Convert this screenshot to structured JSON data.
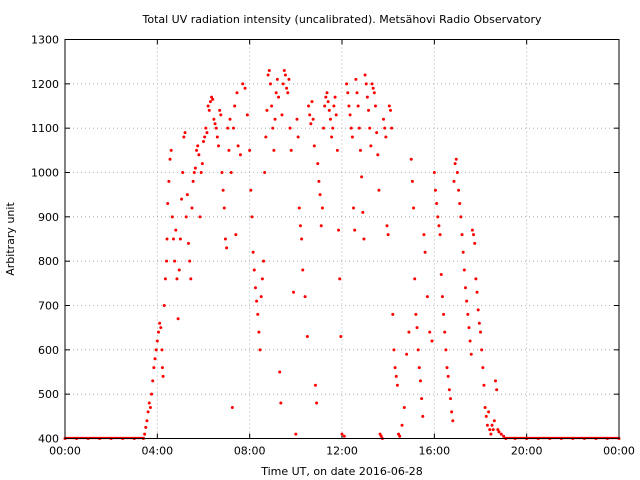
{
  "chart_data": {
    "type": "scatter",
    "title": "Total UV radiation intensity (uncalibrated). Metsähovi Radio Observatory",
    "xlabel": "Time UT, on date 2016-06-28",
    "ylabel": "Arbitrary unit",
    "xlim": [
      0,
      24
    ],
    "ylim": [
      400,
      1300
    ],
    "x_ticks": [
      {
        "value": 0,
        "label": "00:00"
      },
      {
        "value": 4,
        "label": "04:00"
      },
      {
        "value": 8,
        "label": "08:00"
      },
      {
        "value": 12,
        "label": "12:00"
      },
      {
        "value": 16,
        "label": "16:00"
      },
      {
        "value": 20,
        "label": "20:00"
      },
      {
        "value": 24,
        "label": "00:00"
      }
    ],
    "y_ticks": [
      {
        "value": 400,
        "label": "400"
      },
      {
        "value": 500,
        "label": "500"
      },
      {
        "value": 600,
        "label": "600"
      },
      {
        "value": 700,
        "label": "700"
      },
      {
        "value": 800,
        "label": "800"
      },
      {
        "value": 900,
        "label": "900"
      },
      {
        "value": 1000,
        "label": "1000"
      },
      {
        "value": 1100,
        "label": "1100"
      },
      {
        "value": 1200,
        "label": "1200"
      },
      {
        "value": 1300,
        "label": "1300"
      }
    ],
    "grid": true,
    "color": "#ff0000",
    "series": [
      {
        "points": [
          [
            0.0,
            400
          ],
          [
            0.5,
            400
          ],
          [
            1.0,
            400
          ],
          [
            1.5,
            400
          ],
          [
            2.0,
            400
          ],
          [
            2.5,
            400
          ],
          [
            3.0,
            400
          ],
          [
            3.4,
            400
          ],
          [
            3.45,
            410
          ],
          [
            3.5,
            425
          ],
          [
            3.55,
            440
          ],
          [
            3.6,
            460
          ],
          [
            3.65,
            480
          ],
          [
            3.7,
            470
          ],
          [
            3.75,
            500
          ],
          [
            3.8,
            530
          ],
          [
            3.85,
            560
          ],
          [
            3.9,
            580
          ],
          [
            3.95,
            600
          ],
          [
            4.0,
            620
          ],
          [
            4.05,
            640
          ],
          [
            4.1,
            660
          ],
          [
            4.15,
            650
          ],
          [
            4.2,
            600
          ],
          [
            4.22,
            560
          ],
          [
            4.25,
            540
          ],
          [
            4.3,
            700
          ],
          [
            4.35,
            760
          ],
          [
            4.4,
            800
          ],
          [
            4.42,
            850
          ],
          [
            4.45,
            930
          ],
          [
            4.5,
            980
          ],
          [
            4.55,
            1030
          ],
          [
            4.6,
            1050
          ],
          [
            4.65,
            900
          ],
          [
            4.7,
            850
          ],
          [
            4.75,
            800
          ],
          [
            4.8,
            870
          ],
          [
            4.85,
            760
          ],
          [
            4.9,
            670
          ],
          [
            4.95,
            780
          ],
          [
            5.0,
            850
          ],
          [
            5.05,
            940
          ],
          [
            5.1,
            1000
          ],
          [
            5.15,
            1080
          ],
          [
            5.2,
            1090
          ],
          [
            5.25,
            900
          ],
          [
            5.3,
            950
          ],
          [
            5.35,
            840
          ],
          [
            5.4,
            800
          ],
          [
            5.45,
            760
          ],
          [
            5.5,
            920
          ],
          [
            5.55,
            980
          ],
          [
            5.6,
            1000
          ],
          [
            5.65,
            1010
          ],
          [
            5.7,
            1050
          ],
          [
            5.75,
            1060
          ],
          [
            5.8,
            1040
          ],
          [
            5.85,
            900
          ],
          [
            5.9,
            1000
          ],
          [
            5.95,
            1020
          ],
          [
            6.0,
            1070
          ],
          [
            6.05,
            1080
          ],
          [
            6.1,
            1100
          ],
          [
            6.15,
            1090
          ],
          [
            6.2,
            1150
          ],
          [
            6.25,
            1140
          ],
          [
            6.3,
            1160
          ],
          [
            6.35,
            1170
          ],
          [
            6.4,
            1165
          ],
          [
            6.45,
            1120
          ],
          [
            6.5,
            1110
          ],
          [
            6.55,
            1100
          ],
          [
            6.6,
            1080
          ],
          [
            6.65,
            1060
          ],
          [
            6.7,
            1140
          ],
          [
            6.75,
            1130
          ],
          [
            6.8,
            1000
          ],
          [
            6.85,
            960
          ],
          [
            6.9,
            920
          ],
          [
            6.95,
            850
          ],
          [
            7.0,
            830
          ],
          [
            7.05,
            1100
          ],
          [
            7.1,
            1050
          ],
          [
            7.15,
            1120
          ],
          [
            7.2,
            1000
          ],
          [
            7.25,
            470
          ],
          [
            7.3,
            1100
          ],
          [
            7.35,
            1150
          ],
          [
            7.4,
            860
          ],
          [
            7.45,
            1180
          ],
          [
            7.5,
            1060
          ],
          [
            7.6,
            1040
          ],
          [
            7.7,
            1200
          ],
          [
            7.8,
            1190
          ],
          [
            7.9,
            1130
          ],
          [
            8.0,
            1050
          ],
          [
            8.05,
            960
          ],
          [
            8.1,
            900
          ],
          [
            8.15,
            820
          ],
          [
            8.2,
            780
          ],
          [
            8.25,
            740
          ],
          [
            8.3,
            710
          ],
          [
            8.35,
            680
          ],
          [
            8.4,
            640
          ],
          [
            8.45,
            600
          ],
          [
            8.5,
            720
          ],
          [
            8.55,
            760
          ],
          [
            8.6,
            800
          ],
          [
            8.65,
            1000
          ],
          [
            8.7,
            1080
          ],
          [
            8.75,
            1140
          ],
          [
            8.8,
            1220
          ],
          [
            8.85,
            1230
          ],
          [
            8.9,
            1200
          ],
          [
            8.95,
            1150
          ],
          [
            9.0,
            1100
          ],
          [
            9.05,
            1050
          ],
          [
            9.1,
            1120
          ],
          [
            9.15,
            1180
          ],
          [
            9.2,
            1210
          ],
          [
            9.25,
            1170
          ],
          [
            9.3,
            550
          ],
          [
            9.35,
            480
          ],
          [
            9.4,
            1130
          ],
          [
            9.45,
            1200
          ],
          [
            9.5,
            1230
          ],
          [
            9.55,
            1220
          ],
          [
            9.6,
            1190
          ],
          [
            9.65,
            1180
          ],
          [
            9.7,
            1210
          ],
          [
            9.75,
            1100
          ],
          [
            9.8,
            1050
          ],
          [
            9.9,
            730
          ],
          [
            10.0,
            410
          ],
          [
            10.05,
            1120
          ],
          [
            10.1,
            1080
          ],
          [
            10.15,
            920
          ],
          [
            10.2,
            880
          ],
          [
            10.25,
            850
          ],
          [
            10.3,
            780
          ],
          [
            10.4,
            720
          ],
          [
            10.5,
            630
          ],
          [
            10.55,
            1150
          ],
          [
            10.6,
            1130
          ],
          [
            10.65,
            1110
          ],
          [
            10.7,
            1160
          ],
          [
            10.75,
            1120
          ],
          [
            10.8,
            1060
          ],
          [
            10.85,
            520
          ],
          [
            10.9,
            480
          ],
          [
            10.95,
            1020
          ],
          [
            11.0,
            980
          ],
          [
            11.05,
            950
          ],
          [
            11.1,
            880
          ],
          [
            11.15,
            920
          ],
          [
            11.2,
            1100
          ],
          [
            11.25,
            1150
          ],
          [
            11.3,
            1170
          ],
          [
            11.35,
            1180
          ],
          [
            11.4,
            1160
          ],
          [
            11.45,
            1140
          ],
          [
            11.5,
            1120
          ],
          [
            11.55,
            1080
          ],
          [
            11.6,
            1100
          ],
          [
            11.65,
            1150
          ],
          [
            11.7,
            1170
          ],
          [
            11.75,
            1130
          ],
          [
            11.8,
            1050
          ],
          [
            11.85,
            870
          ],
          [
            11.9,
            760
          ],
          [
            11.95,
            630
          ],
          [
            12.0,
            410
          ],
          [
            12.1,
            405
          ],
          [
            12.2,
            1200
          ],
          [
            12.25,
            1180
          ],
          [
            12.3,
            1150
          ],
          [
            12.35,
            1130
          ],
          [
            12.4,
            1100
          ],
          [
            12.45,
            1080
          ],
          [
            12.5,
            920
          ],
          [
            12.55,
            870
          ],
          [
            12.6,
            1210
          ],
          [
            12.65,
            1180
          ],
          [
            12.7,
            1150
          ],
          [
            12.75,
            1100
          ],
          [
            12.8,
            1050
          ],
          [
            12.85,
            990
          ],
          [
            12.9,
            910
          ],
          [
            12.95,
            850
          ],
          [
            13.0,
            1220
          ],
          [
            13.05,
            1200
          ],
          [
            13.1,
            1170
          ],
          [
            13.15,
            1140
          ],
          [
            13.2,
            1100
          ],
          [
            13.25,
            1060
          ],
          [
            13.3,
            1200
          ],
          [
            13.35,
            1190
          ],
          [
            13.4,
            1180
          ],
          [
            13.45,
            1150
          ],
          [
            13.5,
            1090
          ],
          [
            13.55,
            1040
          ],
          [
            13.6,
            960
          ],
          [
            13.65,
            410
          ],
          [
            13.7,
            405
          ],
          [
            13.75,
            400
          ],
          [
            13.8,
            1120
          ],
          [
            13.85,
            1100
          ],
          [
            13.9,
            1080
          ],
          [
            13.95,
            880
          ],
          [
            14.0,
            860
          ],
          [
            14.05,
            1150
          ],
          [
            14.1,
            1140
          ],
          [
            14.15,
            1100
          ],
          [
            14.2,
            680
          ],
          [
            14.25,
            600
          ],
          [
            14.3,
            560
          ],
          [
            14.35,
            540
          ],
          [
            14.4,
            520
          ],
          [
            14.45,
            410
          ],
          [
            14.5,
            405
          ],
          [
            14.6,
            430
          ],
          [
            14.7,
            470
          ],
          [
            14.8,
            590
          ],
          [
            14.9,
            640
          ],
          [
            15.0,
            1030
          ],
          [
            15.05,
            980
          ],
          [
            15.1,
            920
          ],
          [
            15.15,
            760
          ],
          [
            15.2,
            680
          ],
          [
            15.25,
            650
          ],
          [
            15.3,
            600
          ],
          [
            15.35,
            560
          ],
          [
            15.4,
            530
          ],
          [
            15.45,
            490
          ],
          [
            15.5,
            450
          ],
          [
            15.55,
            860
          ],
          [
            15.6,
            820
          ],
          [
            15.7,
            720
          ],
          [
            15.8,
            640
          ],
          [
            15.9,
            620
          ],
          [
            16.0,
            1000
          ],
          [
            16.05,
            960
          ],
          [
            16.1,
            930
          ],
          [
            16.15,
            900
          ],
          [
            16.2,
            880
          ],
          [
            16.25,
            860
          ],
          [
            16.3,
            770
          ],
          [
            16.35,
            720
          ],
          [
            16.4,
            680
          ],
          [
            16.45,
            640
          ],
          [
            16.5,
            600
          ],
          [
            16.55,
            560
          ],
          [
            16.6,
            540
          ],
          [
            16.65,
            510
          ],
          [
            16.7,
            490
          ],
          [
            16.75,
            460
          ],
          [
            16.8,
            440
          ],
          [
            16.85,
            980
          ],
          [
            16.9,
            1020
          ],
          [
            16.95,
            1030
          ],
          [
            17.0,
            1000
          ],
          [
            17.05,
            960
          ],
          [
            17.1,
            930
          ],
          [
            17.15,
            900
          ],
          [
            17.2,
            860
          ],
          [
            17.25,
            820
          ],
          [
            17.3,
            780
          ],
          [
            17.35,
            740
          ],
          [
            17.4,
            710
          ],
          [
            17.45,
            680
          ],
          [
            17.5,
            650
          ],
          [
            17.55,
            620
          ],
          [
            17.6,
            590
          ],
          [
            17.65,
            870
          ],
          [
            17.7,
            860
          ],
          [
            17.75,
            840
          ],
          [
            17.8,
            760
          ],
          [
            17.85,
            730
          ],
          [
            17.9,
            690
          ],
          [
            17.95,
            660
          ],
          [
            18.0,
            640
          ],
          [
            18.05,
            600
          ],
          [
            18.1,
            560
          ],
          [
            18.15,
            520
          ],
          [
            18.2,
            470
          ],
          [
            18.25,
            450
          ],
          [
            18.3,
            430
          ],
          [
            18.35,
            460
          ],
          [
            18.4,
            420
          ],
          [
            18.45,
            410
          ],
          [
            18.5,
            430
          ],
          [
            18.55,
            420
          ],
          [
            18.6,
            440
          ],
          [
            18.65,
            530
          ],
          [
            18.7,
            510
          ],
          [
            18.75,
            420
          ],
          [
            18.8,
            415
          ],
          [
            18.9,
            410
          ],
          [
            19.0,
            405
          ],
          [
            19.1,
            400
          ],
          [
            19.5,
            400
          ],
          [
            20.0,
            400
          ],
          [
            20.5,
            400
          ],
          [
            21.0,
            400
          ],
          [
            21.5,
            400
          ],
          [
            22.0,
            400
          ],
          [
            22.5,
            400
          ],
          [
            23.0,
            400
          ],
          [
            23.5,
            400
          ],
          [
            24.0,
            400
          ]
        ]
      }
    ]
  }
}
